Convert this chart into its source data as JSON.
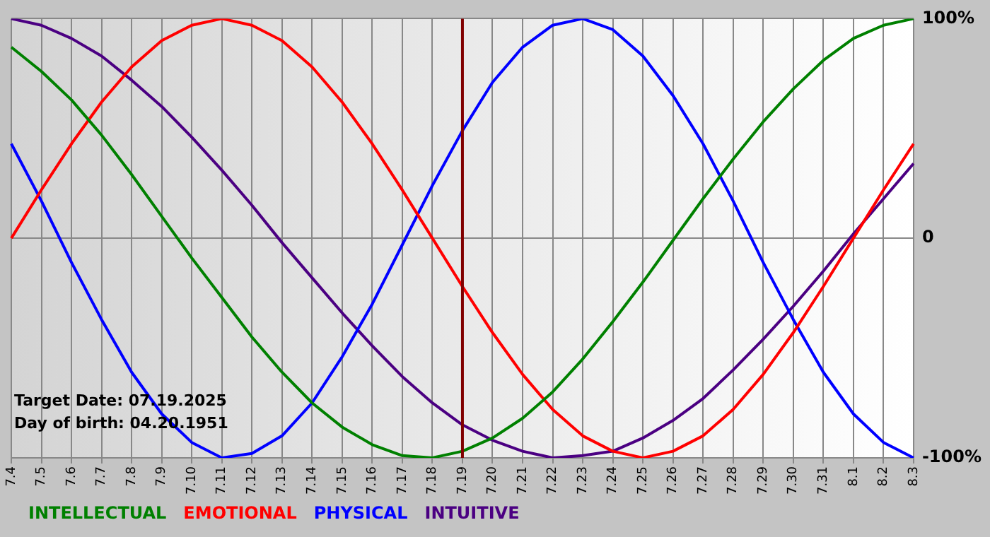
{
  "chart_data": {
    "type": "line",
    "categories": [
      "7.4",
      "7.5",
      "7.6",
      "7.7",
      "7.8",
      "7.9",
      "7.10",
      "7.11",
      "7.12",
      "7.13",
      "7.14",
      "7.15",
      "7.16",
      "7.17",
      "7.18",
      "7.19",
      "7.20",
      "7.21",
      "7.22",
      "7.23",
      "7.24",
      "7.25",
      "7.26",
      "7.27",
      "7.28",
      "7.29",
      "7.30",
      "7.31",
      "8.1",
      "8.2",
      "8.3"
    ],
    "series": [
      {
        "name": "INTELLECTUAL",
        "color": "#008000",
        "values": [
          87,
          76,
          63,
          47,
          29,
          10,
          -9,
          -27,
          -45,
          -61,
          -75,
          -86,
          -94,
          -99,
          -100,
          -97,
          -91,
          -82,
          -70,
          -55,
          -38,
          -20,
          -1,
          18,
          36,
          53,
          68,
          81,
          91,
          97,
          100
        ]
      },
      {
        "name": "EMOTIONAL",
        "color": "#ff0000",
        "values": [
          0,
          22,
          43,
          62,
          78,
          90,
          97,
          100,
          97,
          90,
          78,
          62,
          43,
          22,
          0,
          -22,
          -43,
          -62,
          -78,
          -90,
          -97,
          -100,
          -97,
          -90,
          -78,
          -62,
          -43,
          -22,
          0,
          22,
          43
        ]
      },
      {
        "name": "PHYSICAL",
        "color": "#0000ff",
        "values": [
          43,
          17,
          -11,
          -37,
          -61,
          -80,
          -93,
          -100,
          -98,
          -90,
          -75,
          -54,
          -30,
          -3,
          24,
          49,
          71,
          87,
          97,
          100,
          95,
          83,
          65,
          43,
          17,
          -11,
          -37,
          -61,
          -80,
          -93,
          -100
        ]
      },
      {
        "name": "INTUITIVE",
        "color": "#4b0082",
        "values": [
          100,
          97,
          91,
          83,
          72,
          60,
          46,
          31,
          15,
          -2,
          -18,
          -34,
          -49,
          -63,
          -75,
          -85,
          -92,
          -97,
          -100,
          -99,
          -97,
          -91,
          -83,
          -73,
          -60,
          -46,
          -31,
          -15,
          2,
          18,
          34
        ]
      }
    ],
    "ylim": [
      -100,
      100
    ],
    "yticks": [
      {
        "value": -100,
        "label": "-100%"
      },
      0,
      {
        "value": 100,
        "label": "100%"
      }
    ],
    "grid": true,
    "legend": "bottom left",
    "marker": "none",
    "line_style": "solid",
    "ref_lines": [
      {
        "axis": "x",
        "value": "7.19",
        "color": "#800000"
      }
    ],
    "annotations": [
      "Target Date: 07.19.2025",
      "Day of birth: 04.20.1951"
    ]
  }
}
